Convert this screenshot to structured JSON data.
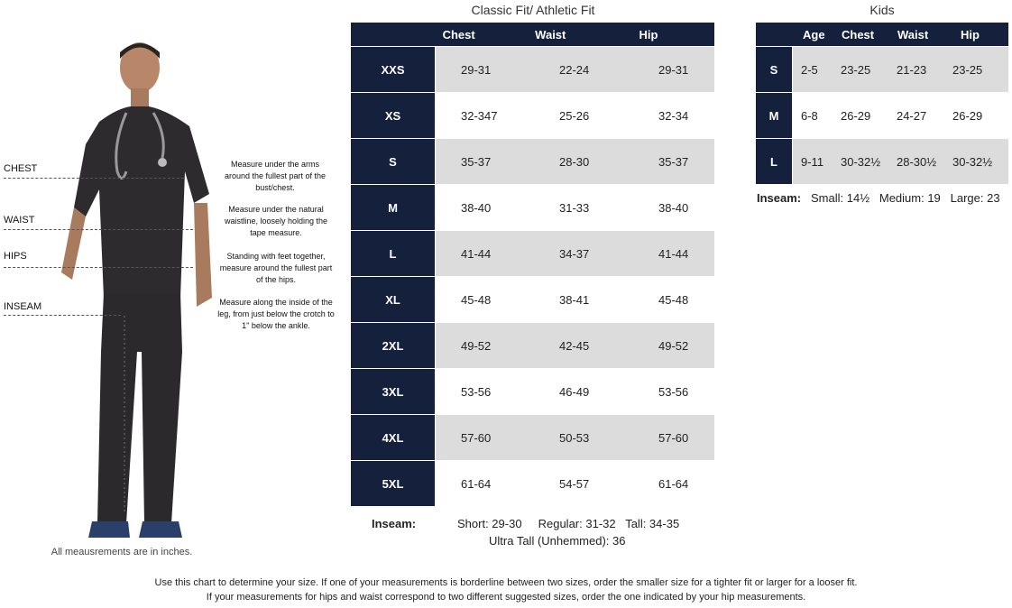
{
  "model": {
    "labels": [
      "CHEST",
      "WAIST",
      "HIPS",
      "INSEAM"
    ],
    "notes": [
      "Measure under the arms around the fullest part of the bust/chest.",
      "Measure under the natural waistline, loosely holding the tape measure.",
      "Standing with feet together, measure around the fullest part of the hips.",
      "Measure along the inside of the leg, from just below the crotch to 1\" below the ankle."
    ],
    "units_note": "All meausrements are in inches."
  },
  "adult": {
    "title": "Classic Fit/ Athletic Fit",
    "headers": [
      "",
      "Chest",
      "Waist",
      "Hip"
    ],
    "rows": [
      {
        "size": "XXS",
        "chest": "29-31",
        "waist": "22-24",
        "hip": "29-31"
      },
      {
        "size": "XS",
        "chest": "32-347",
        "waist": "25-26",
        "hip": "32-34"
      },
      {
        "size": "S",
        "chest": "35-37",
        "waist": "28-30",
        "hip": "35-37"
      },
      {
        "size": "M",
        "chest": "38-40",
        "waist": "31-33",
        "hip": "38-40"
      },
      {
        "size": "L",
        "chest": "41-44",
        "waist": "34-37",
        "hip": "41-44"
      },
      {
        "size": "XL",
        "chest": "45-48",
        "waist": "38-41",
        "hip": "45-48"
      },
      {
        "size": "2XL",
        "chest": "49-52",
        "waist": "42-45",
        "hip": "49-52"
      },
      {
        "size": "3XL",
        "chest": "53-56",
        "waist": "46-49",
        "hip": "53-56"
      },
      {
        "size": "4XL",
        "chest": "57-60",
        "waist": "50-53",
        "hip": "57-60"
      },
      {
        "size": "5XL",
        "chest": "61-64",
        "waist": "54-57",
        "hip": "61-64"
      }
    ],
    "inseam_label": "Inseam:",
    "inseam_line1": "Short: 29-30     Regular: 31-32   Tall: 34-35",
    "inseam_line2": "Ultra Tall (Unhemmed): 36"
  },
  "kids": {
    "title": "Kids",
    "headers": [
      "",
      "Age",
      "Chest",
      "Waist",
      "Hip"
    ],
    "rows": [
      {
        "size": "S",
        "age": "2-5",
        "chest": "23-25",
        "waist": "21-23",
        "hip": "23-25"
      },
      {
        "size": "M",
        "age": "6-8",
        "chest": "26-29",
        "waist": "24-27",
        "hip": "26-29"
      },
      {
        "size": "L",
        "age": "9-11",
        "chest": "30-32½",
        "waist": "28-30½",
        "hip": "30-32½"
      }
    ],
    "inseam_label": "Inseam:",
    "inseam_values": "Small: 14½   Medium: 19   Large: 23"
  },
  "footer": {
    "line1": "Use this chart to determine your size. If one of your measurements is borderline between two sizes, order the smaller size for a tighter fit or larger for a looser fit.",
    "line2": "If your measurements for hips and waist correspond to two different suggested sizes, order the one indicated by your hip measurements."
  },
  "colors": {
    "header_navy": "#14203c",
    "shade_gray": "#dcdcdc"
  }
}
